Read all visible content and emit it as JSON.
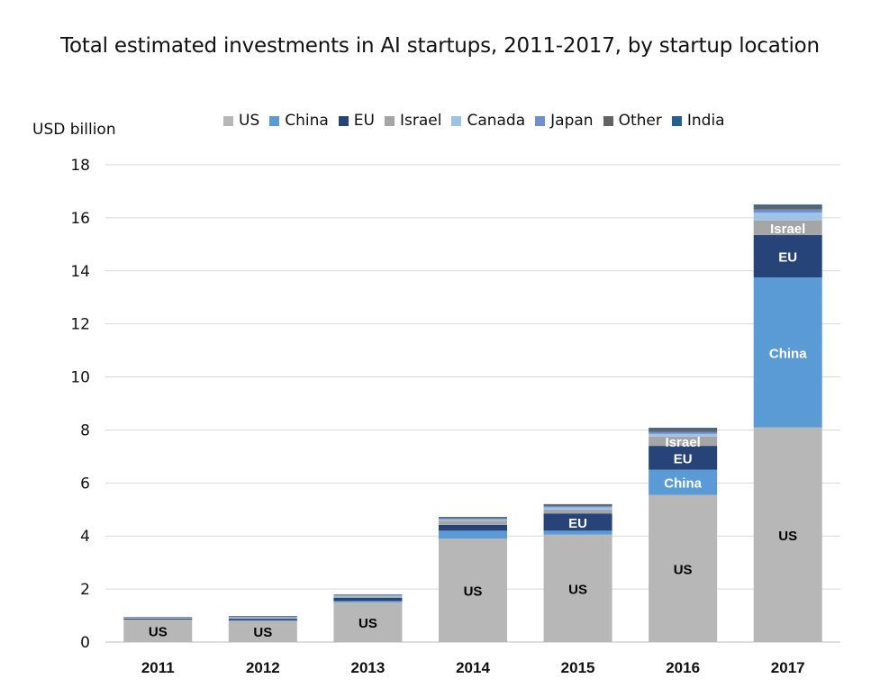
{
  "chart_data": {
    "type": "bar",
    "stacked": true,
    "title": "Total estimated investments in AI startups, 2011-2017, by startup location",
    "ylabel": "USD billion",
    "xlabel": "",
    "ylim": [
      0,
      18
    ],
    "yticks": [
      0,
      2,
      4,
      6,
      8,
      10,
      12,
      14,
      16,
      18
    ],
    "grid": true,
    "legend_position": "top",
    "categories": [
      "2011",
      "2012",
      "2013",
      "2014",
      "2015",
      "2016",
      "2017"
    ],
    "series": [
      {
        "name": "US",
        "color": "#b7b7b7",
        "values": [
          0.85,
          0.8,
          1.5,
          3.9,
          4.05,
          5.55,
          8.1
        ]
      },
      {
        "name": "China",
        "color": "#5b9bd5",
        "values": [
          0.0,
          0.02,
          0.05,
          0.3,
          0.15,
          0.95,
          5.65
        ]
      },
      {
        "name": "EU",
        "color": "#264478",
        "values": [
          0.04,
          0.06,
          0.12,
          0.22,
          0.65,
          0.9,
          1.6
        ]
      },
      {
        "name": "Israel",
        "color": "#a5a5a5",
        "values": [
          0.02,
          0.03,
          0.05,
          0.15,
          0.15,
          0.35,
          0.55
        ]
      },
      {
        "name": "Canada",
        "color": "#9dc3e6",
        "values": [
          0.01,
          0.02,
          0.03,
          0.06,
          0.08,
          0.1,
          0.3
        ]
      },
      {
        "name": "Japan",
        "color": "#6f8fcf",
        "values": [
          0.01,
          0.02,
          0.02,
          0.03,
          0.05,
          0.08,
          0.12
        ]
      },
      {
        "name": "Other",
        "color": "#636363",
        "values": [
          0.01,
          0.02,
          0.02,
          0.04,
          0.05,
          0.1,
          0.12
        ]
      },
      {
        "name": "India",
        "color": "#255e91",
        "values": [
          0.01,
          0.01,
          0.01,
          0.02,
          0.02,
          0.05,
          0.06
        ]
      }
    ],
    "bar_labels": [
      {
        "category": "2011",
        "series": "US",
        "text": "US",
        "color": "#000000"
      },
      {
        "category": "2012",
        "series": "US",
        "text": "US",
        "color": "#000000"
      },
      {
        "category": "2013",
        "series": "US",
        "text": "US",
        "color": "#000000"
      },
      {
        "category": "2014",
        "series": "US",
        "text": "US",
        "color": "#000000"
      },
      {
        "category": "2015",
        "series": "US",
        "text": "US",
        "color": "#000000"
      },
      {
        "category": "2015",
        "series": "EU",
        "text": "EU",
        "color": "#ffffff"
      },
      {
        "category": "2016",
        "series": "US",
        "text": "US",
        "color": "#000000"
      },
      {
        "category": "2016",
        "series": "China",
        "text": "China",
        "color": "#ffffff"
      },
      {
        "category": "2016",
        "series": "EU",
        "text": "EU",
        "color": "#ffffff"
      },
      {
        "category": "2016",
        "series": "Israel",
        "text": "Israel",
        "color": "#ffffff"
      },
      {
        "category": "2017",
        "series": "US",
        "text": "US",
        "color": "#000000"
      },
      {
        "category": "2017",
        "series": "China",
        "text": "China",
        "color": "#ffffff"
      },
      {
        "category": "2017",
        "series": "EU",
        "text": "EU",
        "color": "#ffffff"
      },
      {
        "category": "2017",
        "series": "Israel",
        "text": "Israel",
        "color": "#ffffff"
      }
    ]
  }
}
